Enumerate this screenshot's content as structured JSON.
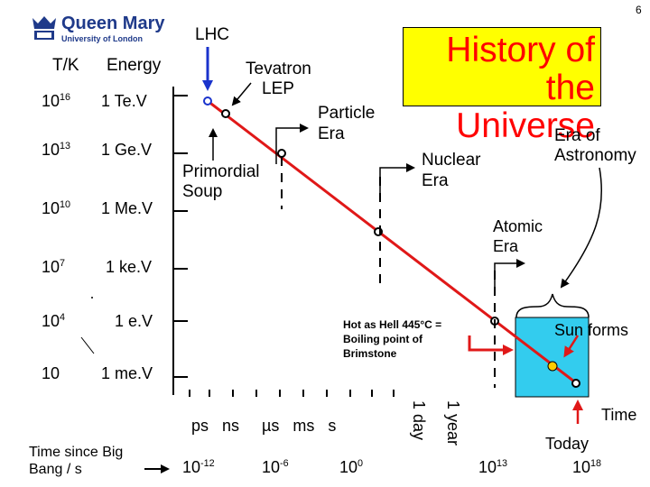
{
  "logo": {
    "name": "Queen Mary",
    "subtitle": "University of London"
  },
  "page_number": "6",
  "title": "History of the Universe",
  "left_axis": {
    "temp_header": "T/K",
    "energy_header": "Energy",
    "temps": [
      "10",
      "10",
      "10",
      "10",
      "10",
      "10"
    ],
    "temp_exponents": [
      "16",
      "13",
      "10",
      "7",
      "4",
      ""
    ],
    "energies": [
      "1 Te.V",
      "1 Ge.V",
      "1 Me.V",
      "1 ke.V",
      "1 e.V",
      "1 me.V"
    ]
  },
  "labels": {
    "lhc": "LHC",
    "tevatron": "Tevatron",
    "lep": "LEP",
    "particle_era": "Particle Era",
    "primordial_soup": "Primordial Soup",
    "nuclear_era": "Nuclear Era",
    "era_of_astronomy": "Era of Astronomy",
    "atomic_era": "Atomic Era",
    "sun_forms": "Sun forms",
    "hot_as_hell": "Hot as Hell 445°C = Boiling point of Brimstone"
  },
  "time_axis": {
    "units": "ps   ns     µs   ms   s",
    "one_day": "1 day",
    "one_year": "1 year",
    "time_label": "Time",
    "today": "Today",
    "caption": "Time since Big Bang / s",
    "ticks": [
      {
        "base": "10",
        "exp": "-12"
      },
      {
        "base": "10",
        "exp": "-6"
      },
      {
        "base": "10",
        "exp": "0"
      },
      {
        "base": "10",
        "exp": "13"
      },
      {
        "base": "10",
        "exp": "18"
      }
    ]
  },
  "colors": {
    "title_text": "#ff0000",
    "title_bg": "#ffff00",
    "cosmic_line": "#e01818",
    "sun_box": "#33ccee",
    "arrows": "#1a33cc",
    "logo_blue": "#1f3a8a"
  }
}
